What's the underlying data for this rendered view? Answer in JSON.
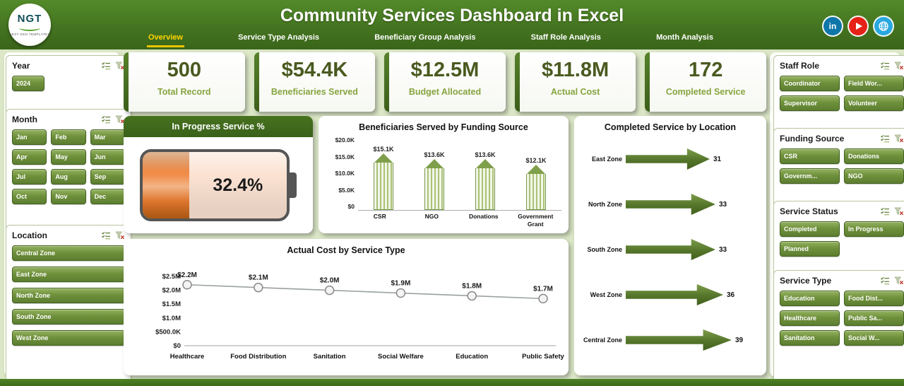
{
  "header": {
    "title": "Community Services Dashboard in Excel",
    "logo": {
      "brand": "NGT",
      "tagline": "NEXT GEN TEMPLATES"
    },
    "tabs": [
      {
        "label": "Overview",
        "active": true
      },
      {
        "label": "Service Type Analysis",
        "active": false
      },
      {
        "label": "Beneficiary Group Analysis",
        "active": false
      },
      {
        "label": "Staff Role Analysis",
        "active": false
      },
      {
        "label": "Month Analysis",
        "active": false
      }
    ],
    "social": {
      "linkedin_label": "in"
    }
  },
  "kpis": [
    {
      "value": "500",
      "label": "Total Record"
    },
    {
      "value": "$54.4K",
      "label": "Beneficiaries Served"
    },
    {
      "value": "$12.5M",
      "label": "Budget Allocated"
    },
    {
      "value": "$11.8M",
      "label": "Actual Cost"
    },
    {
      "value": "172",
      "label": "Completed Service"
    }
  ],
  "slicers": {
    "year": {
      "title": "Year",
      "items": [
        "2024"
      ]
    },
    "month": {
      "title": "Month",
      "items": [
        "Jan",
        "Feb",
        "Mar",
        "Apr",
        "May",
        "Jun",
        "Jul",
        "Aug",
        "Sep",
        "Oct",
        "Nov",
        "Dec"
      ]
    },
    "location": {
      "title": "Location",
      "items": [
        "Central Zone",
        "East Zone",
        "North Zone",
        "South Zone",
        "West Zone"
      ]
    },
    "staff_role": {
      "title": "Staff Role",
      "items": [
        "Coordinator",
        "Field Wor...",
        "Supervisor",
        "Volunteer"
      ]
    },
    "funding_source": {
      "title": "Funding Source",
      "items": [
        "CSR",
        "Donations",
        "Governm...",
        "NGO"
      ]
    },
    "service_status": {
      "title": "Service Status",
      "items": [
        "Completed",
        "In Progress",
        "Planned"
      ]
    },
    "service_type": {
      "title": "Service Type",
      "items": [
        "Education",
        "Food Dist...",
        "Healthcare",
        "Public Sa...",
        "Sanitation",
        "Social W..."
      ]
    }
  },
  "chart_data": [
    {
      "type": "gauge",
      "title": "In Progress Service %",
      "value": 32.4,
      "label": "32.4%",
      "range": [
        0,
        100
      ],
      "fill_color": "#ed7d31"
    },
    {
      "type": "bar",
      "title": "Beneficiaries Served by Funding Source",
      "categories": [
        "CSR",
        "NGO",
        "Donations",
        "Government Grant"
      ],
      "values": [
        15100,
        13600,
        13600,
        12100
      ],
      "value_labels": [
        "$15.1K",
        "$13.6K",
        "$13.6K",
        "$12.1K"
      ],
      "ylim": [
        0,
        20000
      ],
      "yticks": [
        "$20.0K",
        "$15.0K",
        "$10.0K",
        "$5.0K",
        "$0"
      ],
      "bar_style": "pencil",
      "bar_color": "#7c9c45"
    },
    {
      "type": "line",
      "title": "Actual Cost by Service Type",
      "categories": [
        "Healthcare",
        "Food Distribution",
        "Sanitation",
        "Social Welfare",
        "Education",
        "Public Safety"
      ],
      "values": [
        2200000,
        2100000,
        2000000,
        1900000,
        1800000,
        1700000
      ],
      "value_labels": [
        "$2.2M",
        "$2.1M",
        "$2.0M",
        "$1.9M",
        "$1.8M",
        "$1.7M"
      ],
      "ylim": [
        0,
        2500000
      ],
      "yticks": [
        "$2.5M",
        "$2.0M",
        "$1.5M",
        "$1.0M",
        "$500.0K",
        "$0"
      ],
      "marker": "circle",
      "line_color": "#9aa0a0"
    },
    {
      "type": "bar",
      "orientation": "horizontal",
      "title": "Completed Service by Location",
      "categories": [
        "East Zone",
        "North Zone",
        "South Zone",
        "West Zone",
        "Central Zone"
      ],
      "values": [
        31,
        33,
        33,
        36,
        39
      ],
      "bar_style": "arrow",
      "bar_color": "#4f6f24"
    }
  ],
  "colors": {
    "header_green": "#447420",
    "accent_yellow": "#ffd400",
    "slicer_green": "#6f913c",
    "kpi_number": "#4a5a20",
    "kpi_label": "#86a43f",
    "battery_orange": "#ed7d31"
  }
}
